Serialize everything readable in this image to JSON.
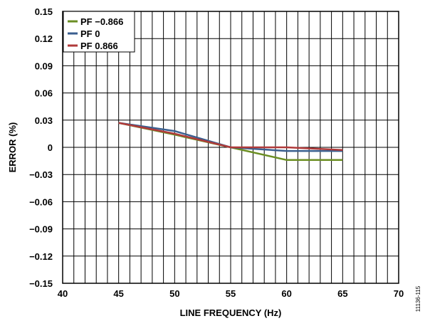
{
  "chart_data": {
    "type": "line",
    "xlabel": "LINE FREQUENCY (Hz)",
    "ylabel": "ERROR (%)",
    "xlim": [
      40,
      70
    ],
    "ylim": [
      -0.15,
      0.15
    ],
    "x_ticks": [
      "40",
      "45",
      "50",
      "55",
      "60",
      "65",
      "70"
    ],
    "y_ticks": [
      "0.15",
      "0.12",
      "0.09",
      "0.06",
      "0.03",
      "0",
      "−0.03",
      "−0.06",
      "−0.09",
      "−0.12",
      "−0.15"
    ],
    "grid": true,
    "legend_position": "top-left",
    "figure_id": "11136-115",
    "series": [
      {
        "name": "PF −0.866",
        "color": "#6b8e23",
        "x": [
          45,
          50,
          55,
          60,
          65
        ],
        "y": [
          0.027,
          0.014,
          0.0,
          -0.014,
          -0.014
        ]
      },
      {
        "name": "PF 0",
        "color": "#3a5f8f",
        "x": [
          45,
          50,
          55,
          60,
          65
        ],
        "y": [
          0.027,
          0.018,
          0.0,
          -0.004,
          -0.004
        ]
      },
      {
        "name": "PF 0.866",
        "color": "#b03a3a",
        "x": [
          45,
          50,
          55,
          60,
          65
        ],
        "y": [
          0.027,
          0.015,
          0.0,
          0.0,
          -0.003
        ]
      }
    ]
  }
}
